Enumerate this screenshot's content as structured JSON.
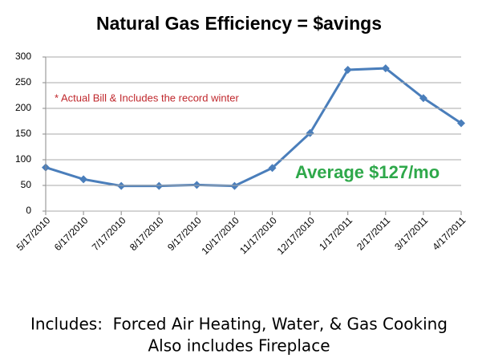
{
  "chart_data": {
    "type": "line",
    "title": "Natural Gas Efficiency = $avings",
    "categories": [
      "5/17/2010",
      "6/17/2010",
      "7/17/2010",
      "8/17/2010",
      "9/17/2010",
      "10/17/2010",
      "11/17/2010",
      "12/17/2010",
      "1/17/2011",
      "2/17/2011",
      "3/17/2011",
      "4/17/2011"
    ],
    "values": [
      85,
      62,
      49,
      49,
      51,
      49,
      84,
      152,
      275,
      278,
      220,
      171
    ],
    "color": "#4a7ebb",
    "ylim": [
      0,
      300
    ],
    "yticks": [
      0,
      50,
      100,
      150,
      200,
      250,
      300
    ],
    "grid": true,
    "annotations": [
      "* Actual Bill & Includes the record winter",
      "Average $127/mo"
    ],
    "footer": [
      "Includes:  Forced Air Heating, Water, & Gas Cooking",
      "Also includes Fireplace"
    ]
  }
}
